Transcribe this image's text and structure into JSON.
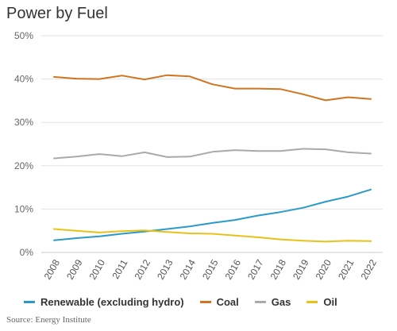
{
  "chart_data": {
    "type": "line",
    "title": "Power by Fuel",
    "xlabel": "",
    "ylabel": "",
    "x": [
      "2008",
      "2009",
      "2010",
      "2011",
      "2012",
      "2013",
      "2014",
      "2015",
      "2016",
      "2017",
      "2018",
      "2019",
      "2020",
      "2021",
      "2022"
    ],
    "ylim": [
      0,
      50
    ],
    "yticks": [
      0,
      10,
      20,
      30,
      40,
      50
    ],
    "ytick_labels": [
      "0%",
      "10%",
      "20%",
      "30%",
      "40%",
      "50%"
    ],
    "grid": "horizontal",
    "legend_position": "bottom",
    "series": [
      {
        "name": "Renewable (excluding hydro)",
        "color": "#2a9bc9",
        "values": [
          2.8,
          3.3,
          3.7,
          4.3,
          4.8,
          5.4,
          6.0,
          6.8,
          7.5,
          8.5,
          9.3,
          10.3,
          11.7,
          12.9,
          14.5
        ]
      },
      {
        "name": "Coal",
        "color": "#d0741f",
        "values": [
          40.5,
          40.1,
          40.0,
          40.8,
          39.9,
          40.9,
          40.6,
          38.8,
          37.8,
          37.8,
          37.7,
          36.5,
          35.1,
          35.8,
          35.4
        ]
      },
      {
        "name": "Gas",
        "color": "#aaaaaa",
        "values": [
          21.7,
          22.1,
          22.7,
          22.2,
          23.1,
          22.0,
          22.1,
          23.2,
          23.6,
          23.4,
          23.4,
          23.9,
          23.8,
          23.1,
          22.8
        ]
      },
      {
        "name": "Oil",
        "color": "#e8c21a",
        "values": [
          5.4,
          5.0,
          4.6,
          4.9,
          5.1,
          4.7,
          4.4,
          4.3,
          3.9,
          3.5,
          3.0,
          2.7,
          2.5,
          2.7,
          2.6
        ]
      }
    ]
  },
  "colors": {
    "grid": "#e3e3e3",
    "axis": "#cccccc"
  },
  "source": "Source: Energy Institute"
}
